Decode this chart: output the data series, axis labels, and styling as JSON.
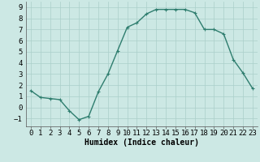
{
  "x": [
    0,
    1,
    2,
    3,
    4,
    5,
    6,
    7,
    8,
    9,
    10,
    11,
    12,
    13,
    14,
    15,
    16,
    17,
    18,
    19,
    20,
    21,
    22,
    23
  ],
  "y": [
    1.5,
    0.9,
    0.8,
    0.7,
    -0.3,
    -1.1,
    -0.8,
    1.4,
    3.0,
    5.1,
    7.2,
    7.6,
    8.4,
    8.8,
    8.8,
    8.8,
    8.8,
    8.5,
    7.0,
    7.0,
    6.6,
    4.3,
    3.1,
    1.7
  ],
  "line_color": "#2e7d6e",
  "marker": "+",
  "markersize": 3,
  "linewidth": 1.0,
  "bg_color": "#cce8e4",
  "grid_color": "#aacfca",
  "xlabel": "Humidex (Indice chaleur)",
  "xlabel_fontsize": 7,
  "tick_fontsize": 6.5,
  "ylim": [
    -1.7,
    9.5
  ],
  "xlim": [
    -0.5,
    23.5
  ],
  "yticks": [
    -1,
    0,
    1,
    2,
    3,
    4,
    5,
    6,
    7,
    8,
    9
  ],
  "xticks": [
    0,
    1,
    2,
    3,
    4,
    5,
    6,
    7,
    8,
    9,
    10,
    11,
    12,
    13,
    14,
    15,
    16,
    17,
    18,
    19,
    20,
    21,
    22,
    23
  ]
}
